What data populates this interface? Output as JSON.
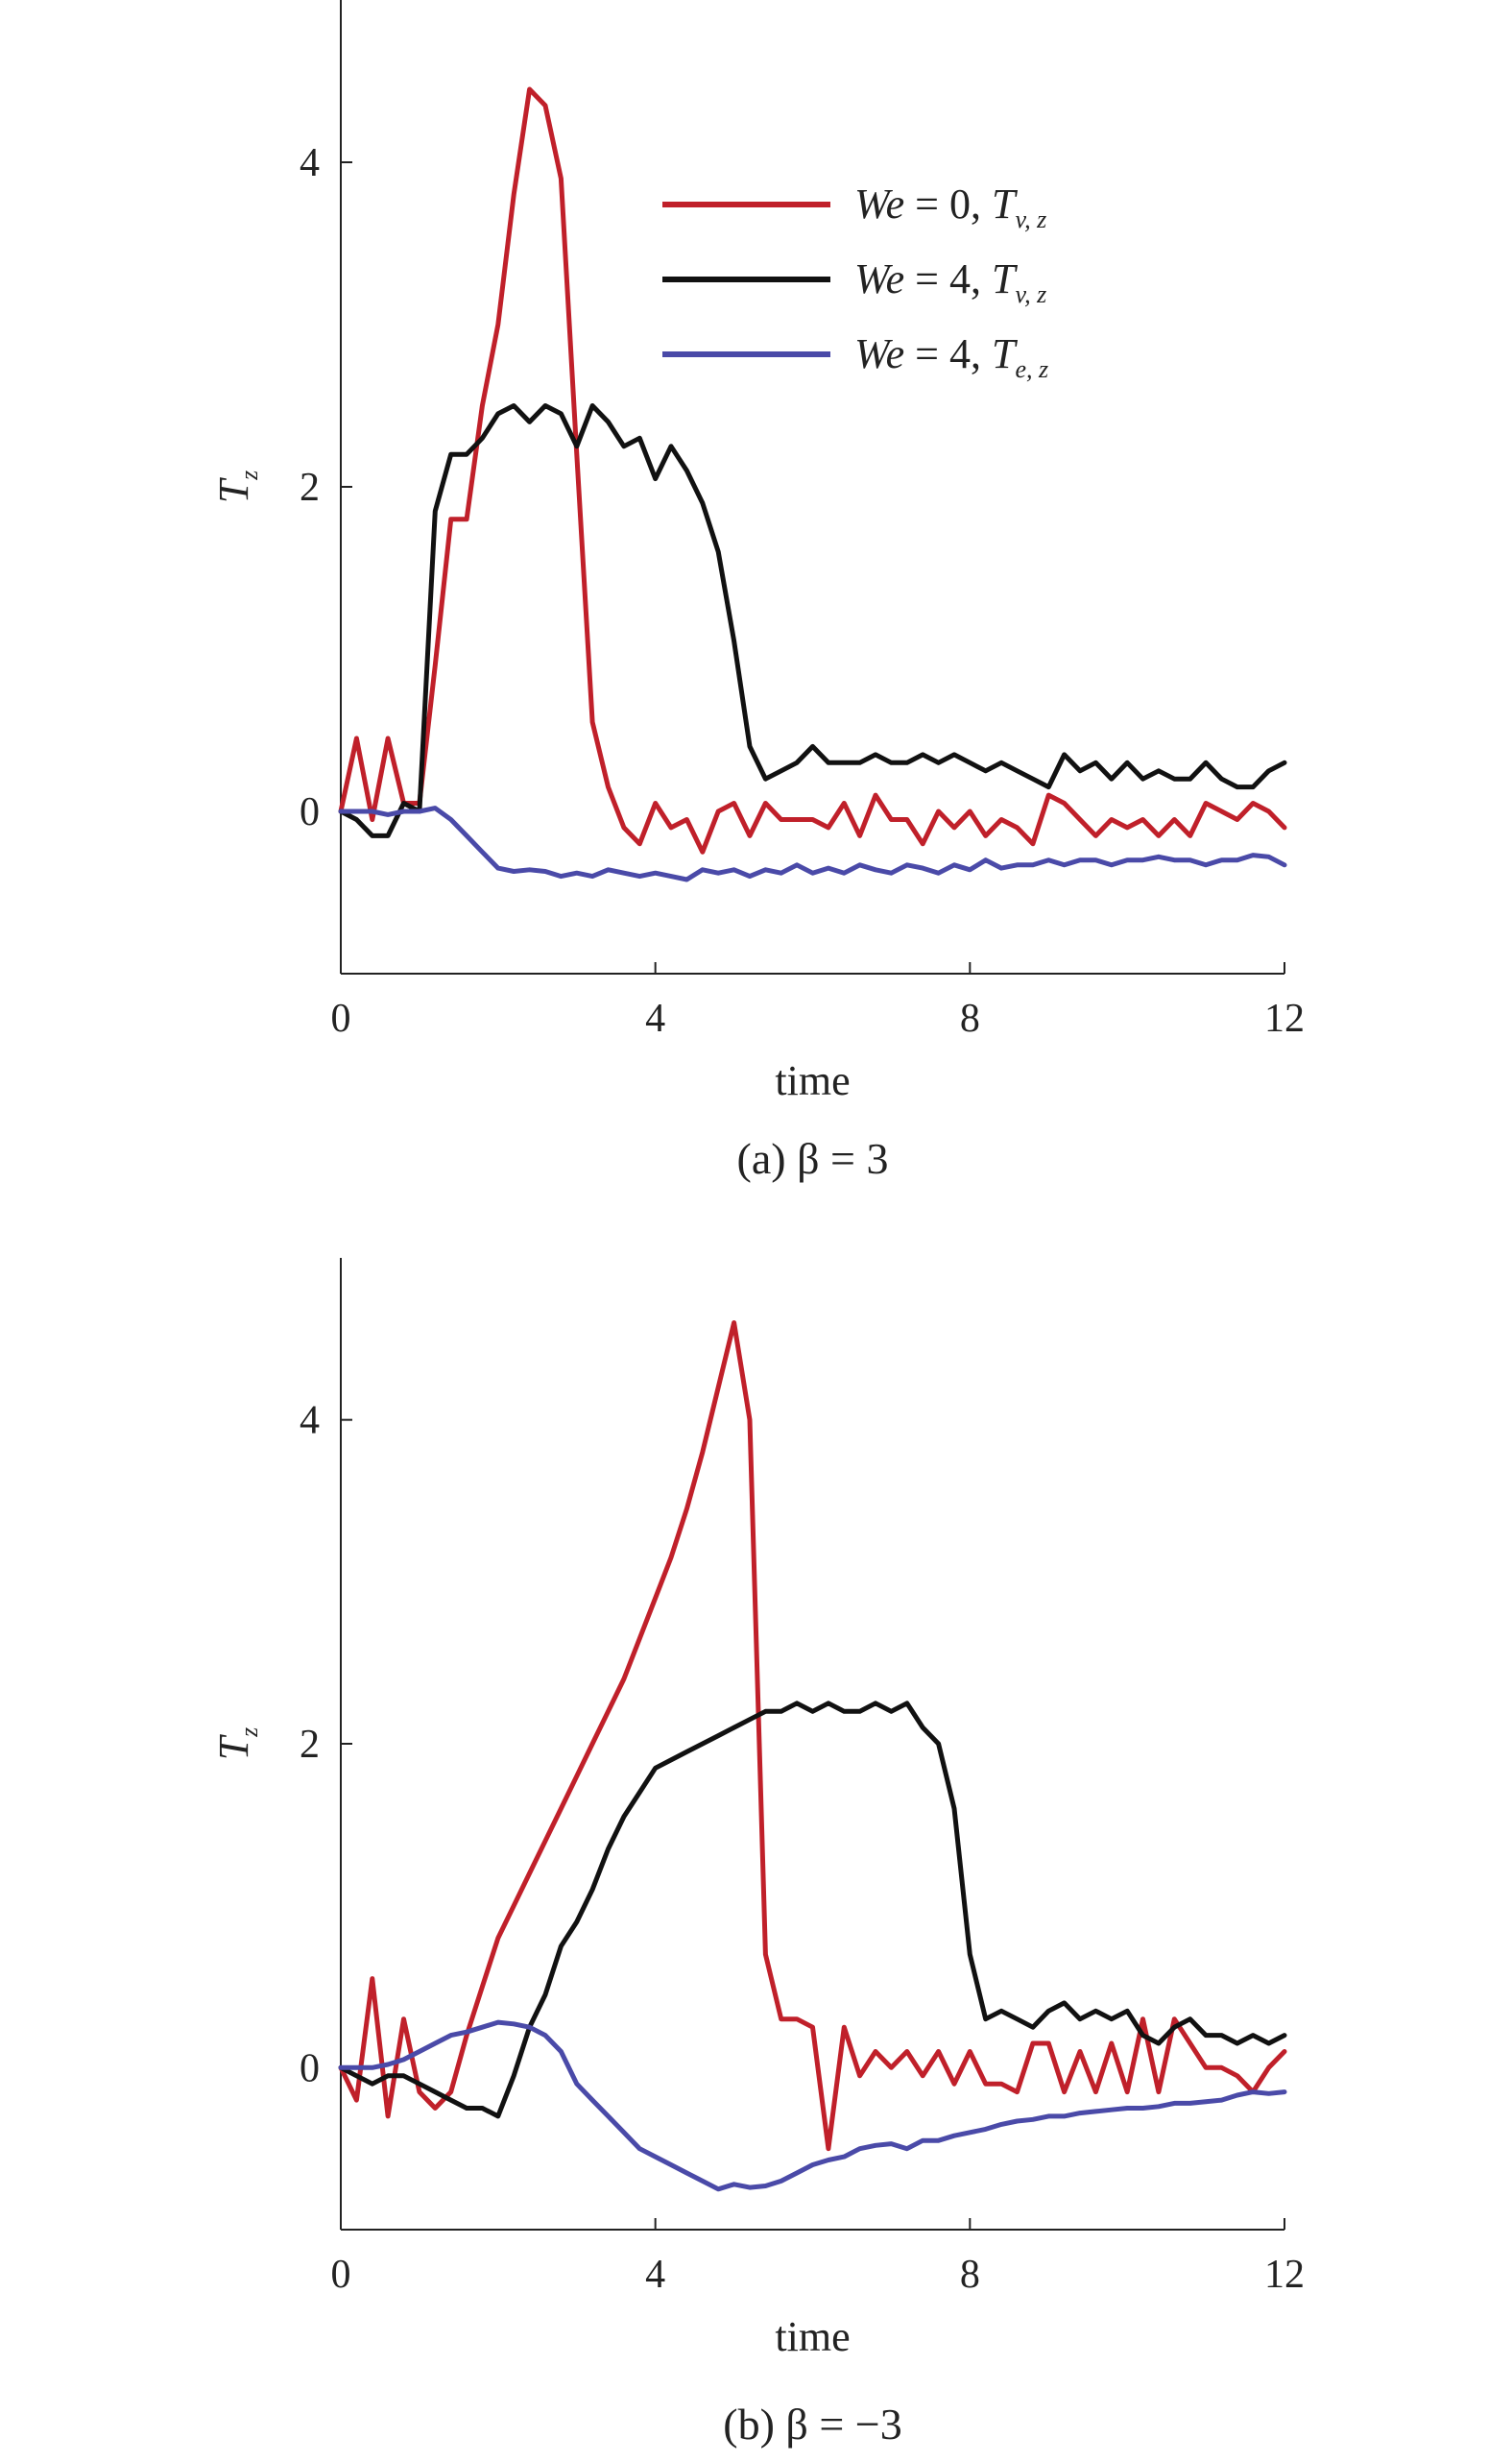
{
  "colors": {
    "red": "#c0202a",
    "black": "#111111",
    "blue": "#4a4aa8"
  },
  "chart_data": [
    {
      "type": "line",
      "caption": "(a) β = 3",
      "xlabel": "time",
      "ylabel": "T_z",
      "xlim": [
        0,
        12
      ],
      "ylim": [
        -1,
        5
      ],
      "xticks": [
        0,
        4,
        8,
        12
      ],
      "yticks": [
        0,
        2,
        4
      ],
      "legend": {
        "position": "top-right",
        "entries": [
          "We = 0, T_v,z",
          "We = 4, T_v,z",
          "We = 4, T_e,z"
        ]
      },
      "series": [
        {
          "name": "We = 0, T_v,z",
          "color": "red",
          "x": [
            0,
            0.2,
            0.4,
            0.6,
            0.8,
            1,
            1.2,
            1.4,
            1.6,
            1.8,
            2,
            2.2,
            2.4,
            2.6,
            2.8,
            3,
            3.2,
            3.4,
            3.6,
            3.8,
            4,
            4.2,
            4.4,
            4.6,
            4.8,
            5,
            5.2,
            5.4,
            5.6,
            5.8,
            6,
            6.2,
            6.4,
            6.6,
            6.8,
            7,
            7.2,
            7.4,
            7.6,
            7.8,
            8,
            8.2,
            8.4,
            8.6,
            8.8,
            9,
            9.2,
            9.4,
            9.6,
            9.8,
            10,
            10.2,
            10.4,
            10.6,
            10.8,
            11,
            11.2,
            11.4,
            11.6,
            11.8,
            12
          ],
          "y": [
            0,
            0.45,
            -0.05,
            0.45,
            0.05,
            0.05,
            0.9,
            1.8,
            1.8,
            2.5,
            3.0,
            3.8,
            4.45,
            4.35,
            3.9,
            2.2,
            0.55,
            0.15,
            -0.1,
            -0.2,
            0.05,
            -0.1,
            -0.05,
            -0.25,
            0.0,
            0.05,
            -0.15,
            0.05,
            -0.05,
            -0.05,
            -0.05,
            -0.1,
            0.05,
            -0.15,
            0.1,
            -0.05,
            -0.05,
            -0.2,
            0.0,
            -0.1,
            0.0,
            -0.15,
            -0.05,
            -0.1,
            -0.2,
            0.1,
            0.05,
            -0.05,
            -0.15,
            -0.05,
            -0.1,
            -0.05,
            -0.15,
            -0.05,
            -0.15,
            0.05,
            0.0,
            -0.05,
            0.05,
            0.0,
            -0.1
          ]
        },
        {
          "name": "We = 4, T_v,z",
          "color": "black",
          "x": [
            0,
            0.2,
            0.4,
            0.6,
            0.8,
            1,
            1.2,
            1.4,
            1.6,
            1.8,
            2,
            2.2,
            2.4,
            2.6,
            2.8,
            3,
            3.2,
            3.4,
            3.6,
            3.8,
            4,
            4.2,
            4.4,
            4.6,
            4.8,
            5,
            5.2,
            5.4,
            5.6,
            5.8,
            6,
            6.2,
            6.4,
            6.6,
            6.8,
            7,
            7.2,
            7.4,
            7.6,
            7.8,
            8,
            8.2,
            8.4,
            8.6,
            8.8,
            9,
            9.2,
            9.4,
            9.6,
            9.8,
            10,
            10.2,
            10.4,
            10.6,
            10.8,
            11,
            11.2,
            11.4,
            11.6,
            11.8,
            12
          ],
          "y": [
            0,
            -0.05,
            -0.15,
            -0.15,
            0.05,
            0.0,
            1.85,
            2.2,
            2.2,
            2.3,
            2.45,
            2.5,
            2.4,
            2.5,
            2.45,
            2.25,
            2.5,
            2.4,
            2.25,
            2.3,
            2.05,
            2.25,
            2.1,
            1.9,
            1.6,
            1.05,
            0.4,
            0.2,
            0.25,
            0.3,
            0.4,
            0.3,
            0.3,
            0.3,
            0.35,
            0.3,
            0.3,
            0.35,
            0.3,
            0.35,
            0.3,
            0.25,
            0.3,
            0.25,
            0.2,
            0.15,
            0.35,
            0.25,
            0.3,
            0.2,
            0.3,
            0.2,
            0.25,
            0.2,
            0.2,
            0.3,
            0.2,
            0.15,
            0.15,
            0.25,
            0.3
          ]
        },
        {
          "name": "We = 4, T_e,z",
          "color": "blue",
          "x": [
            0,
            0.2,
            0.4,
            0.6,
            0.8,
            1,
            1.2,
            1.4,
            1.6,
            1.8,
            2,
            2.2,
            2.4,
            2.6,
            2.8,
            3,
            3.2,
            3.4,
            3.6,
            3.8,
            4,
            4.2,
            4.4,
            4.6,
            4.8,
            5,
            5.2,
            5.4,
            5.6,
            5.8,
            6,
            6.2,
            6.4,
            6.6,
            6.8,
            7,
            7.2,
            7.4,
            7.6,
            7.8,
            8,
            8.2,
            8.4,
            8.6,
            8.8,
            9,
            9.2,
            9.4,
            9.6,
            9.8,
            10,
            10.2,
            10.4,
            10.6,
            10.8,
            11,
            11.2,
            11.4,
            11.6,
            11.8,
            12
          ],
          "y": [
            0,
            0,
            0,
            -0.02,
            0,
            0,
            0.02,
            -0.05,
            -0.15,
            -0.25,
            -0.35,
            -0.37,
            -0.36,
            -0.37,
            -0.4,
            -0.38,
            -0.4,
            -0.36,
            -0.38,
            -0.4,
            -0.38,
            -0.4,
            -0.42,
            -0.36,
            -0.38,
            -0.36,
            -0.4,
            -0.36,
            -0.38,
            -0.33,
            -0.38,
            -0.35,
            -0.38,
            -0.33,
            -0.36,
            -0.38,
            -0.33,
            -0.35,
            -0.38,
            -0.33,
            -0.36,
            -0.3,
            -0.35,
            -0.33,
            -0.33,
            -0.3,
            -0.33,
            -0.3,
            -0.3,
            -0.33,
            -0.3,
            -0.3,
            -0.28,
            -0.3,
            -0.3,
            -0.33,
            -0.3,
            -0.3,
            -0.27,
            -0.28,
            -0.33
          ]
        }
      ]
    },
    {
      "type": "line",
      "caption": "(b) β = −3",
      "xlabel": "time",
      "ylabel": "T_z",
      "xlim": [
        0,
        12
      ],
      "ylim": [
        -1,
        5
      ],
      "xticks": [
        0,
        4,
        8,
        12
      ],
      "yticks": [
        0,
        2,
        4
      ],
      "series": [
        {
          "name": "We = 0, T_v,z",
          "color": "red",
          "x": [
            0,
            0.2,
            0.4,
            0.6,
            0.8,
            1,
            1.2,
            1.4,
            1.6,
            1.8,
            2,
            2.2,
            2.4,
            2.6,
            2.8,
            3,
            3.2,
            3.4,
            3.6,
            3.8,
            4,
            4.2,
            4.4,
            4.6,
            4.8,
            5,
            5.2,
            5.4,
            5.6,
            5.8,
            6,
            6.2,
            6.4,
            6.6,
            6.8,
            7,
            7.2,
            7.4,
            7.6,
            7.8,
            8,
            8.2,
            8.4,
            8.6,
            8.8,
            9,
            9.2,
            9.4,
            9.6,
            9.8,
            10,
            10.2,
            10.4,
            10.6,
            10.8,
            11,
            11.2,
            11.4,
            11.6,
            11.8,
            12
          ],
          "y": [
            0,
            -0.2,
            0.55,
            -0.3,
            0.3,
            -0.15,
            -0.25,
            -0.15,
            0.2,
            0.5,
            0.8,
            1.0,
            1.2,
            1.4,
            1.6,
            1.8,
            2.0,
            2.2,
            2.4,
            2.65,
            2.9,
            3.15,
            3.45,
            3.8,
            4.2,
            4.6,
            4.0,
            0.7,
            0.3,
            0.3,
            0.25,
            -0.5,
            0.25,
            -0.05,
            0.1,
            0.0,
            0.1,
            -0.05,
            0.1,
            -0.1,
            0.1,
            -0.1,
            -0.1,
            -0.15,
            0.15,
            0.15,
            -0.15,
            0.1,
            -0.15,
            0.15,
            -0.15,
            0.3,
            -0.15,
            0.3,
            0.15,
            0.0,
            0.0,
            -0.05,
            -0.15,
            0.0,
            0.1
          ]
        },
        {
          "name": "We = 4, T_v,z",
          "color": "black",
          "x": [
            0,
            0.2,
            0.4,
            0.6,
            0.8,
            1,
            1.2,
            1.4,
            1.6,
            1.8,
            2,
            2.2,
            2.4,
            2.6,
            2.8,
            3,
            3.2,
            3.4,
            3.6,
            3.8,
            4,
            4.2,
            4.4,
            4.6,
            4.8,
            5,
            5.2,
            5.4,
            5.6,
            5.8,
            6,
            6.2,
            6.4,
            6.6,
            6.8,
            7,
            7.2,
            7.4,
            7.6,
            7.8,
            8,
            8.2,
            8.4,
            8.6,
            8.8,
            9,
            9.2,
            9.4,
            9.6,
            9.8,
            10,
            10.2,
            10.4,
            10.6,
            10.8,
            11,
            11.2,
            11.4,
            11.6,
            11.8,
            12
          ],
          "y": [
            0,
            -0.05,
            -0.1,
            -0.05,
            -0.05,
            -0.1,
            -0.15,
            -0.2,
            -0.25,
            -0.25,
            -0.3,
            -0.05,
            0.25,
            0.45,
            0.75,
            0.9,
            1.1,
            1.35,
            1.55,
            1.7,
            1.85,
            1.9,
            1.95,
            2.0,
            2.05,
            2.1,
            2.15,
            2.2,
            2.2,
            2.25,
            2.2,
            2.25,
            2.2,
            2.2,
            2.25,
            2.2,
            2.25,
            2.1,
            2.0,
            1.6,
            0.7,
            0.3,
            0.35,
            0.3,
            0.25,
            0.35,
            0.4,
            0.3,
            0.35,
            0.3,
            0.35,
            0.2,
            0.15,
            0.25,
            0.3,
            0.2,
            0.2,
            0.15,
            0.2,
            0.15,
            0.2
          ]
        },
        {
          "name": "We = 4, T_e,z",
          "color": "blue",
          "x": [
            0,
            0.2,
            0.4,
            0.6,
            0.8,
            1,
            1.2,
            1.4,
            1.6,
            1.8,
            2,
            2.2,
            2.4,
            2.6,
            2.8,
            3,
            3.2,
            3.4,
            3.6,
            3.8,
            4,
            4.2,
            4.4,
            4.6,
            4.8,
            5,
            5.2,
            5.4,
            5.6,
            5.8,
            6,
            6.2,
            6.4,
            6.6,
            6.8,
            7,
            7.2,
            7.4,
            7.6,
            7.8,
            8,
            8.2,
            8.4,
            8.6,
            8.8,
            9,
            9.2,
            9.4,
            9.6,
            9.8,
            10,
            10.2,
            10.4,
            10.6,
            10.8,
            11,
            11.2,
            11.4,
            11.6,
            11.8,
            12
          ],
          "y": [
            0,
            0.0,
            0.0,
            0.02,
            0.05,
            0.1,
            0.15,
            0.2,
            0.22,
            0.25,
            0.28,
            0.27,
            0.25,
            0.2,
            0.1,
            -0.1,
            -0.2,
            -0.3,
            -0.4,
            -0.5,
            -0.55,
            -0.6,
            -0.65,
            -0.7,
            -0.75,
            -0.72,
            -0.74,
            -0.73,
            -0.7,
            -0.65,
            -0.6,
            -0.57,
            -0.55,
            -0.5,
            -0.48,
            -0.47,
            -0.5,
            -0.45,
            -0.45,
            -0.42,
            -0.4,
            -0.38,
            -0.35,
            -0.33,
            -0.32,
            -0.3,
            -0.3,
            -0.28,
            -0.27,
            -0.26,
            -0.25,
            -0.25,
            -0.24,
            -0.22,
            -0.22,
            -0.21,
            -0.2,
            -0.17,
            -0.15,
            -0.16,
            -0.15
          ]
        }
      ]
    }
  ]
}
